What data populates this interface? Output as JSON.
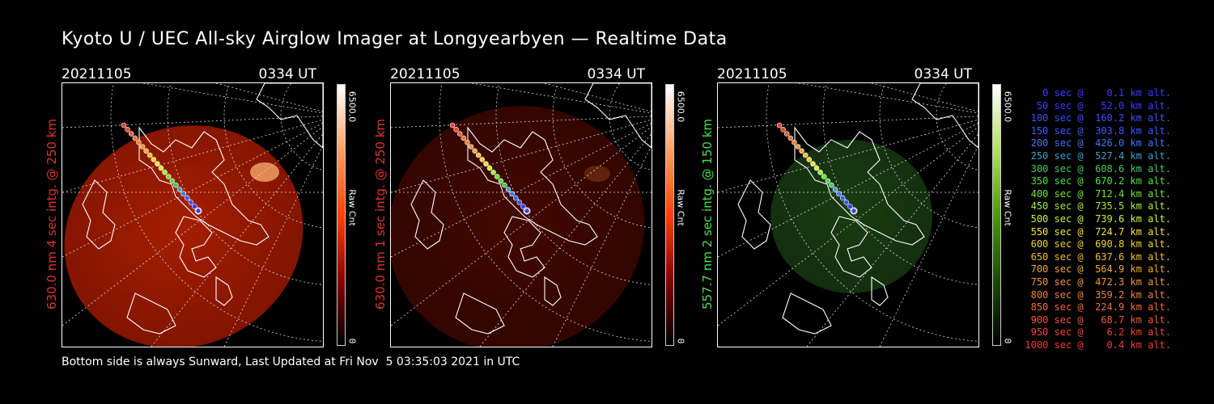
{
  "title": "Kyoto U / UEC All-sky Airglow Imager at Longyearbyen — Realtime Data",
  "footer": "Bottom side is always Sunward, Last Updated at Fri Nov  5 03:35:03 2021 in UTC",
  "colors": {
    "red_label": "#e0342c",
    "green_label": "#47e04a"
  },
  "panels": [
    {
      "date": "20211105",
      "time": "0334 UT",
      "ylabel": "630.0 nm 4 sec intg. @ 250 km",
      "cbar_max": "6500.0",
      "cbar_unit": "Raw Cnt",
      "cbar_min": "0",
      "color": "#e0342c",
      "scheme": "red",
      "brightness": 0.75
    },
    {
      "date": "20211105",
      "time": "0334 UT",
      "ylabel": "630.0 nm 1 sec intg. @ 250 km",
      "cbar_max": "6500.0",
      "cbar_unit": "Raw Cnt",
      "cbar_min": "0",
      "color": "#e0342c",
      "scheme": "red",
      "brightness": 0.2
    },
    {
      "date": "20211105",
      "time": "0334 UT",
      "ylabel": "557.7 nm 2 sec intg. @ 150 km",
      "cbar_max": "6500.0",
      "cbar_unit": "Raw Cnt",
      "cbar_min": "0",
      "color": "#47e04a",
      "scheme": "green",
      "brightness": 0.25
    }
  ],
  "legend": [
    {
      "text": "   0 sec @    0.1 km alt.",
      "color": "#3c3cff"
    },
    {
      "text": "  50 sec @   52.0 km alt.",
      "color": "#3c3cff"
    },
    {
      "text": " 100 sec @  160.2 km alt.",
      "color": "#3c50ff"
    },
    {
      "text": " 150 sec @  303.8 km alt.",
      "color": "#3c5aff"
    },
    {
      "text": " 200 sec @  426.0 km alt.",
      "color": "#3c78ff"
    },
    {
      "text": " 250 sec @  527.4 km alt.",
      "color": "#3ca0c8"
    },
    {
      "text": " 300 sec @  608.6 km alt.",
      "color": "#46c864"
    },
    {
      "text": " 350 sec @  670.2 km alt.",
      "color": "#50e03c"
    },
    {
      "text": " 400 sec @  712.4 km alt.",
      "color": "#6ee632"
    },
    {
      "text": " 450 sec @  735.5 km alt.",
      "color": "#a0f03c"
    },
    {
      "text": " 500 sec @  739.6 km alt.",
      "color": "#d2f03c"
    },
    {
      "text": " 550 sec @  724.7 km alt.",
      "color": "#f0e632"
    },
    {
      "text": " 600 sec @  690.8 km alt.",
      "color": "#f0d232"
    },
    {
      "text": " 650 sec @  637.6 km alt.",
      "color": "#f0be32"
    },
    {
      "text": " 700 sec @  564.9 km alt.",
      "color": "#f0aa32"
    },
    {
      "text": " 750 sec @  472.3 km alt.",
      "color": "#f09632"
    },
    {
      "text": " 800 sec @  359.2 km alt.",
      "color": "#f08232"
    },
    {
      "text": " 850 sec @  224.9 km alt.",
      "color": "#f06e32"
    },
    {
      "text": " 900 sec @   68.7 km alt.",
      "color": "#f05a32"
    },
    {
      "text": " 950 sec @    6.2 km alt.",
      "color": "#f04632"
    },
    {
      "text": "1000 sec @    0.4 km alt.",
      "color": "#f03c32"
    }
  ]
}
